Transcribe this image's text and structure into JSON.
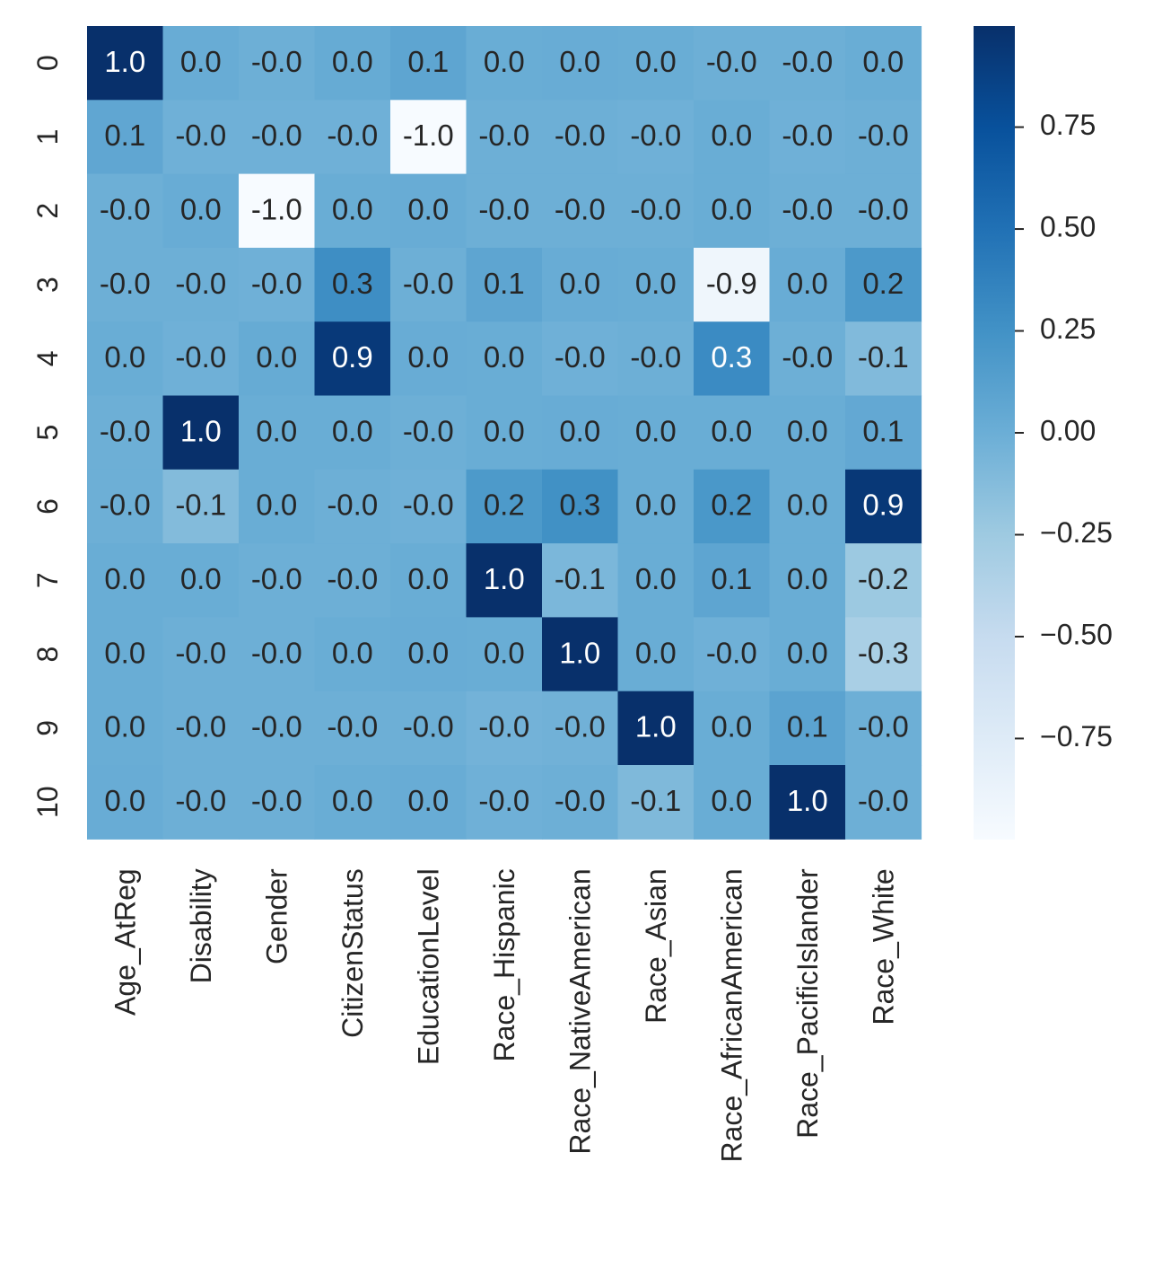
{
  "chart_data": {
    "type": "heatmap",
    "title": "",
    "xlabel": "",
    "ylabel": "",
    "rows": [
      "0",
      "1",
      "2",
      "3",
      "4",
      "5",
      "6",
      "7",
      "8",
      "9",
      "10"
    ],
    "columns": [
      "Age_AtReg",
      "Disability",
      "Gender",
      "CitizenStatus",
      "EducationLevel",
      "Race_Hispanic",
      "Race_NativeAmerican",
      "Race_Asian",
      "Race_AfricanAmerican",
      "Race_PacificIslander",
      "Race_White"
    ],
    "values": [
      [
        0.998,
        0.02,
        -0.01,
        0.03,
        0.08,
        0.01,
        0.02,
        0.01,
        -0.01,
        -0.01,
        0.01
      ],
      [
        0.07,
        -0.02,
        -0.02,
        -0.02,
        -0.998,
        -0.01,
        -0.01,
        -0.02,
        0.01,
        -0.02,
        -0.01
      ],
      [
        -0.01,
        0.02,
        -0.998,
        0.01,
        0.02,
        -0.01,
        -0.01,
        -0.01,
        0.01,
        -0.01,
        -0.01
      ],
      [
        -0.01,
        -0.01,
        -0.02,
        0.28,
        -0.01,
        0.08,
        0.02,
        0.01,
        -0.92,
        0.02,
        0.19
      ],
      [
        0.01,
        -0.02,
        0.03,
        0.93,
        0.02,
        0.01,
        -0.02,
        -0.01,
        0.3,
        -0.01,
        -0.11
      ],
      [
        -0.01,
        0.998,
        0.01,
        0.01,
        -0.01,
        0.01,
        0.02,
        0.01,
        0.01,
        0.01,
        0.05
      ],
      [
        -0.01,
        -0.12,
        0.01,
        -0.01,
        -0.02,
        0.18,
        0.26,
        0.01,
        0.2,
        0.01,
        0.94
      ],
      [
        0.01,
        0.01,
        -0.01,
        -0.01,
        0.01,
        0.998,
        -0.08,
        0.01,
        0.08,
        0.01,
        -0.24
      ],
      [
        0.01,
        -0.01,
        -0.01,
        0.01,
        0.02,
        0.01,
        0.998,
        0.01,
        -0.02,
        0.01,
        -0.32
      ],
      [
        0.01,
        -0.01,
        -0.01,
        -0.01,
        -0.01,
        -0.04,
        -0.03,
        0.998,
        0.01,
        0.1,
        -0.01
      ],
      [
        0.02,
        -0.01,
        -0.01,
        0.01,
        0.02,
        -0.02,
        -0.01,
        -0.1,
        0.01,
        0.998,
        -0.01
      ]
    ],
    "value_format": "0.0",
    "vmin": -1.0,
    "vmax": 1.0,
    "colormap": "Blues",
    "colorbar_ticks": [
      0.75,
      0.5,
      0.25,
      0.0,
      -0.25,
      -0.5,
      -0.75
    ],
    "colorbar_tick_labels": [
      "0.75",
      "0.50",
      "0.25",
      "0.00",
      "−0.25",
      "−0.50",
      "−0.75"
    ],
    "grid": false,
    "colors": {
      "low": "#f7fbff",
      "high": "#08306b",
      "dark_text": "#262626",
      "light_text": "#ffffff"
    }
  }
}
